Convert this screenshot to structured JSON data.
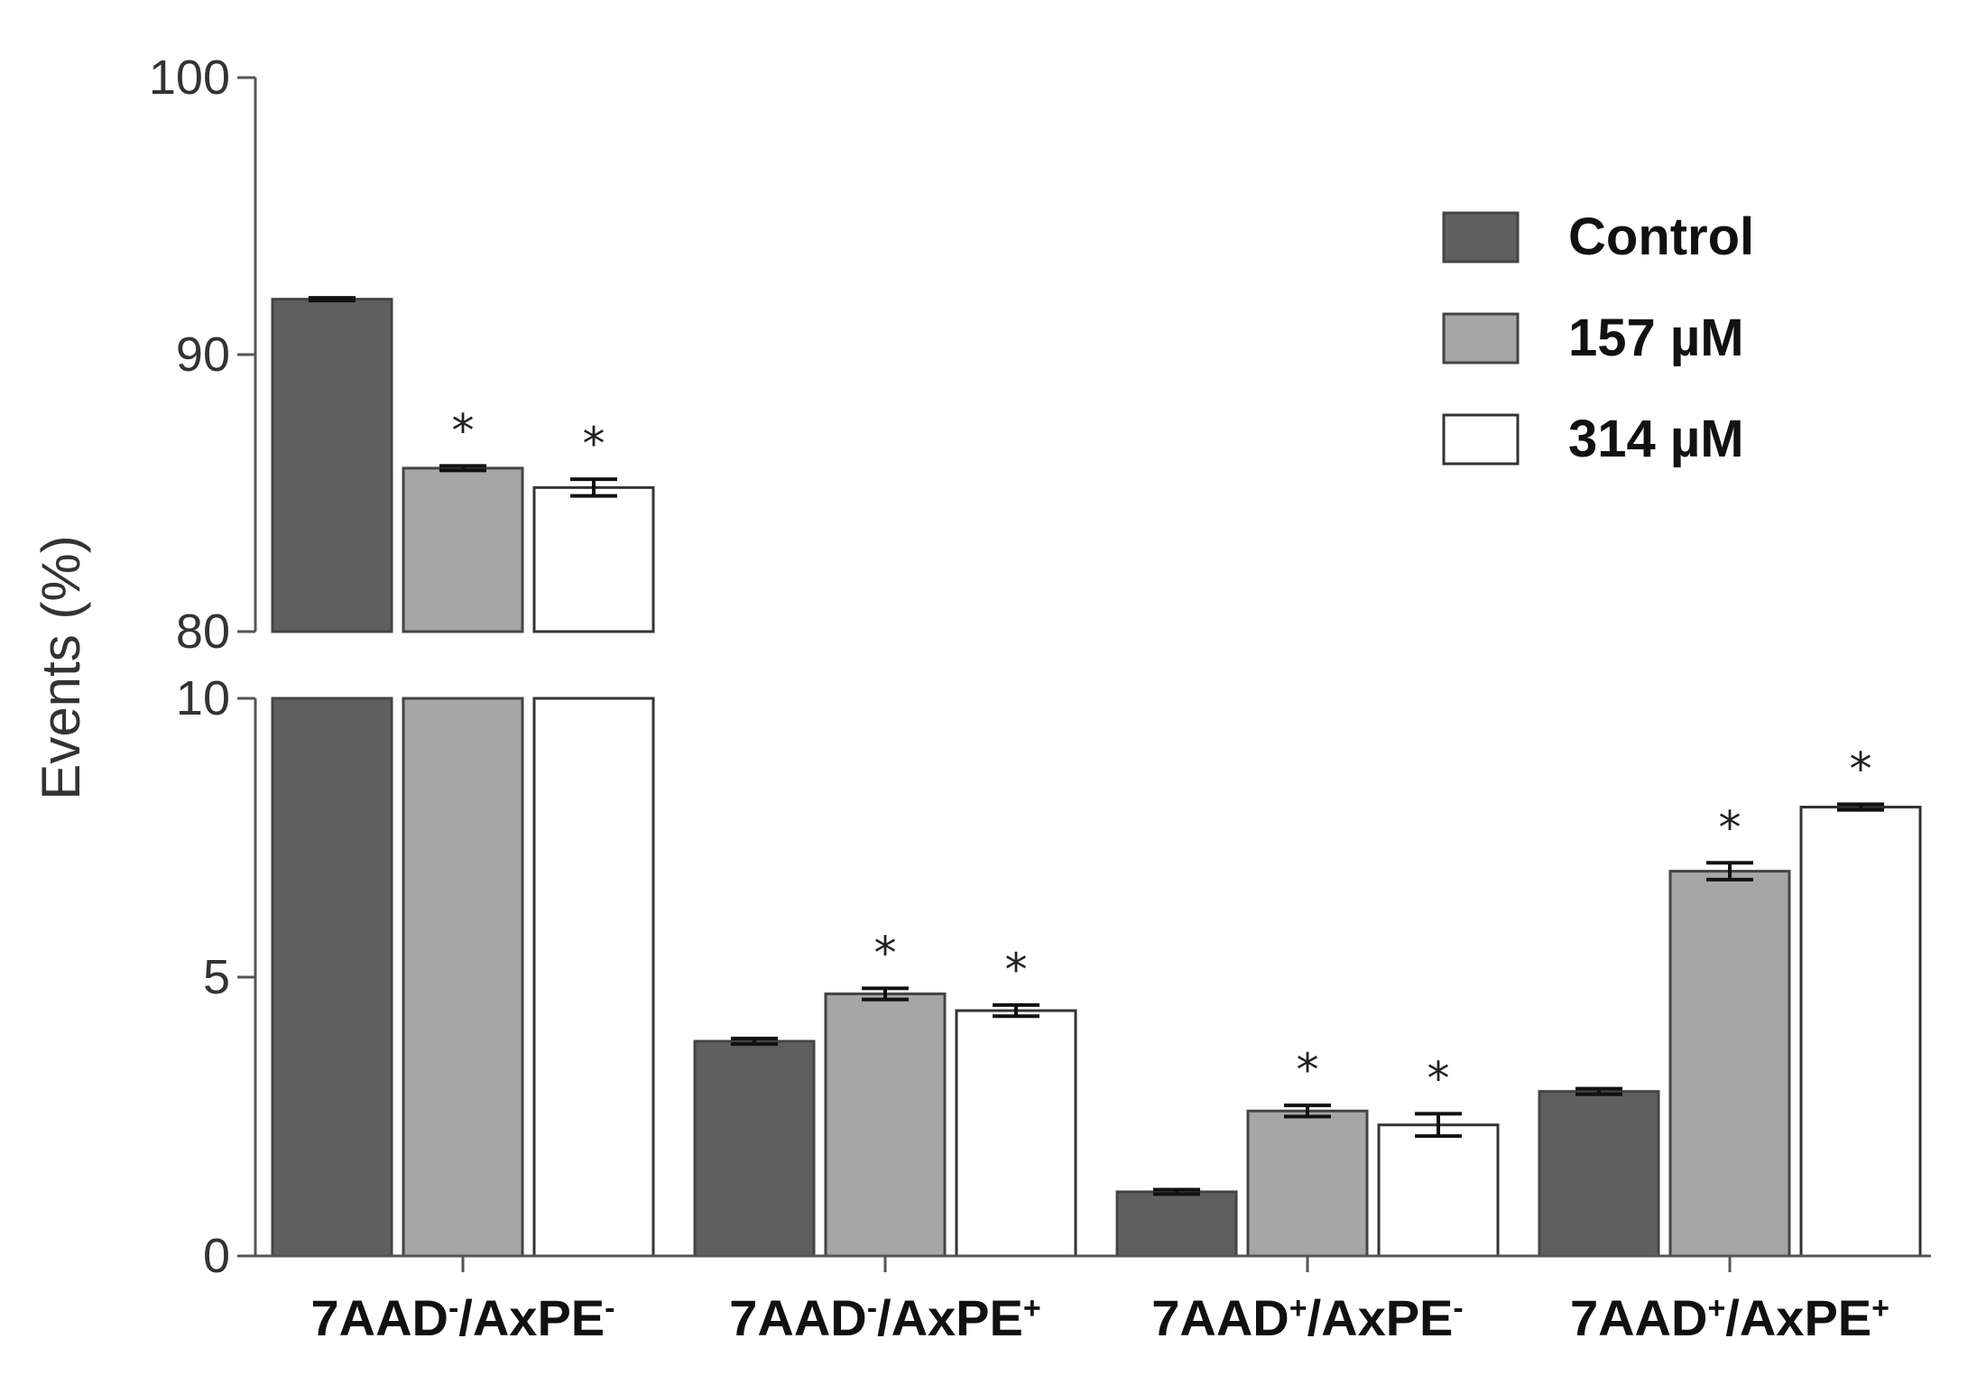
{
  "chart_data": {
    "type": "bar",
    "ylabel": "Events (%)",
    "y_axis_break": true,
    "ylim_lower": [
      0,
      10
    ],
    "ylim_upper": [
      80,
      100
    ],
    "yticks_lower": [
      "0",
      "5",
      "10"
    ],
    "yticks_upper": [
      "80",
      "90",
      "100"
    ],
    "legend_position": "top-right",
    "categories": [
      {
        "main": "7AAD",
        "sup1": "-",
        "mid": "/AxPE",
        "sup2": "-"
      },
      {
        "main": "7AAD",
        "sup1": "-",
        "mid": "/AxPE",
        "sup2": "+"
      },
      {
        "main": "7AAD",
        "sup1": "+",
        "mid": "/AxPE",
        "sup2": "-"
      },
      {
        "main": "7AAD",
        "sup1": "+",
        "mid": "/AxPE",
        "sup2": "+"
      }
    ],
    "series": [
      {
        "name": "Control",
        "color": "#5f5f5f",
        "values": [
          92.0,
          3.85,
          1.15,
          2.95
        ],
        "errors": [
          0.05,
          0.05,
          0.04,
          0.05
        ],
        "significant": [
          false,
          false,
          false,
          false
        ]
      },
      {
        "name": "157 µM",
        "color": "#a6a6a6",
        "values": [
          85.9,
          4.7,
          2.6,
          6.9
        ],
        "errors": [
          0.08,
          0.1,
          0.1,
          0.15
        ],
        "significant": [
          true,
          true,
          true,
          true
        ]
      },
      {
        "name": "314 µM",
        "color": "#ffffff",
        "values": [
          85.2,
          4.4,
          2.35,
          8.05
        ],
        "errors": [
          0.3,
          0.1,
          0.2,
          0.05
        ],
        "significant": [
          true,
          true,
          true,
          true
        ]
      }
    ],
    "significance_marker": "*"
  }
}
